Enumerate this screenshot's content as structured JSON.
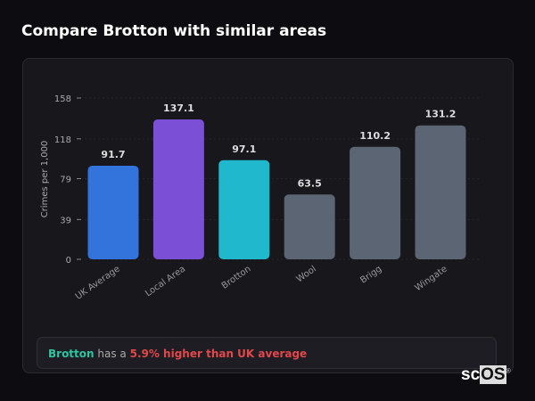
{
  "title": "Compare Brotton with similar areas",
  "chart_data": {
    "type": "bar",
    "ylabel": "Crimes per 1,000",
    "ylim": [
      0,
      158
    ],
    "yticks": [
      0,
      39,
      79,
      118,
      158
    ],
    "grid": true,
    "categories": [
      "UK Average",
      "Local Area",
      "Brotton",
      "Wool",
      "Brigg",
      "Wingate"
    ],
    "values": [
      91.7,
      137.1,
      97.1,
      63.5,
      110.2,
      131.2
    ],
    "labels": [
      "91.7",
      "137.1",
      "97.1",
      "63.5",
      "110.2",
      "131.2"
    ],
    "colors": [
      "#3273dc",
      "#7b4fd6",
      "#1fb8cd",
      "#5b6574",
      "#5b6574",
      "#5b6574"
    ]
  },
  "note": {
    "place": "Brotton",
    "mid": " has a ",
    "highlight": "5.9% higher than UK average"
  },
  "logo": {
    "text1": "sc",
    "text2": "OS",
    "mark": "®"
  }
}
